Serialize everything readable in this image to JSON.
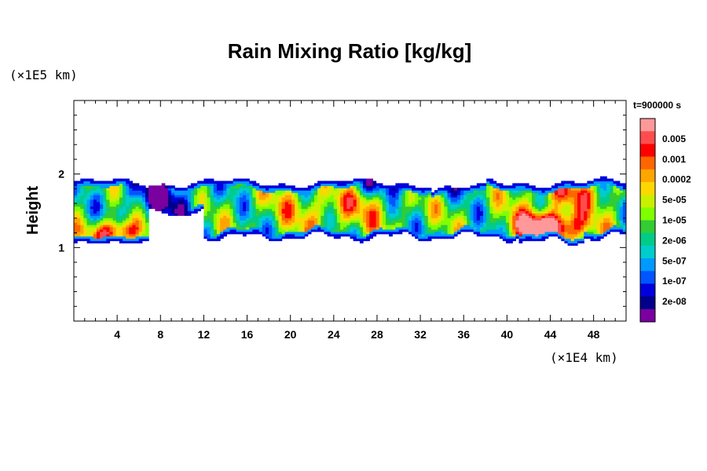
{
  "chart_data": {
    "type": "heatmap",
    "title": "Rain Mixing Ratio [kg/kg]",
    "ylabel": "Height",
    "x_unit_label": "(×1E4 km)",
    "y_unit_label": "(×1E5 km)",
    "time_label": "t=900000 s",
    "xlim": [
      0,
      51
    ],
    "ylim": [
      0,
      3
    ],
    "xticks": [
      4,
      8,
      12,
      16,
      20,
      24,
      28,
      32,
      36,
      40,
      44,
      48
    ],
    "yticks": [
      1,
      2
    ],
    "colorbar": {
      "labels": [
        "0.005",
        "0.001",
        "0.0002",
        "5e-05",
        "1e-05",
        "2e-06",
        "5e-07",
        "1e-07",
        "2e-08"
      ],
      "colors": [
        "#ff9999",
        "#ff4d4d",
        "#ff0000",
        "#ff6600",
        "#ffa500",
        "#ffd700",
        "#c8f000",
        "#7fff00",
        "#33cc33",
        "#00cc88",
        "#00cccc",
        "#0099ff",
        "#0055ff",
        "#0000dd",
        "#00008b",
        "#7a00a0"
      ]
    },
    "field_description": "rain band between height ~1.05 and ~1.95, maxima near x~4 (height ~1.2) and x~43-45 (height ~1.25)"
  }
}
